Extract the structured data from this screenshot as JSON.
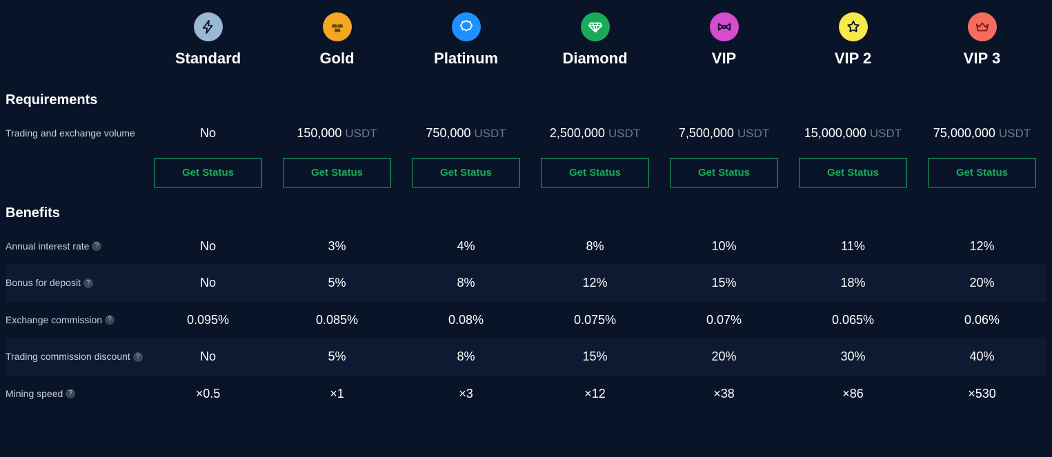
{
  "tiers": [
    {
      "name": "Standard",
      "icon": "bolt",
      "bg": "#9ab8d4",
      "fg": "#0a1428"
    },
    {
      "name": "Gold",
      "icon": "gold",
      "bg": "#f5a623",
      "fg": "#6b4a00"
    },
    {
      "name": "Platinum",
      "icon": "badge",
      "bg": "#1e90ff",
      "fg": "#ffffff"
    },
    {
      "name": "Diamond",
      "icon": "diamond",
      "bg": "#1aab5a",
      "fg": "#ffffff"
    },
    {
      "name": "VIP",
      "icon": "bowtie",
      "bg": "#d64ccf",
      "fg": "#0a1428"
    },
    {
      "name": "VIP 2",
      "icon": "star",
      "bg": "#f7e94a",
      "fg": "#0a1428"
    },
    {
      "name": "VIP 3",
      "icon": "crown",
      "bg": "#f76b5e",
      "fg": "#7a1a12"
    }
  ],
  "sections": {
    "requirements_title": "Requirements",
    "benefits_title": "Benefits"
  },
  "get_status_label": "Get Status",
  "volume": {
    "label": "Trading and exchange volume",
    "unit": "USDT",
    "values": [
      "No",
      "150,000",
      "750,000",
      "2,500,000",
      "7,500,000",
      "15,000,000",
      "75,000,000"
    ]
  },
  "benefits": [
    {
      "label": "Annual interest rate",
      "help": true,
      "values": [
        "No",
        "3%",
        "4%",
        "8%",
        "10%",
        "11%",
        "12%"
      ]
    },
    {
      "label": "Bonus for deposit",
      "help": true,
      "values": [
        "No",
        "5%",
        "8%",
        "12%",
        "15%",
        "18%",
        "20%"
      ]
    },
    {
      "label": "Exchange commission",
      "help": true,
      "values": [
        "0.095%",
        "0.085%",
        "0.08%",
        "0.075%",
        "0.07%",
        "0.065%",
        "0.06%"
      ]
    },
    {
      "label": "Trading commission discount",
      "help": true,
      "values": [
        "No",
        "5%",
        "8%",
        "15%",
        "20%",
        "30%",
        "40%"
      ]
    },
    {
      "label": "Mining speed",
      "help": true,
      "values": [
        "×0.5",
        "×1",
        "×3",
        "×12",
        "×38",
        "×86",
        "×530"
      ]
    }
  ]
}
